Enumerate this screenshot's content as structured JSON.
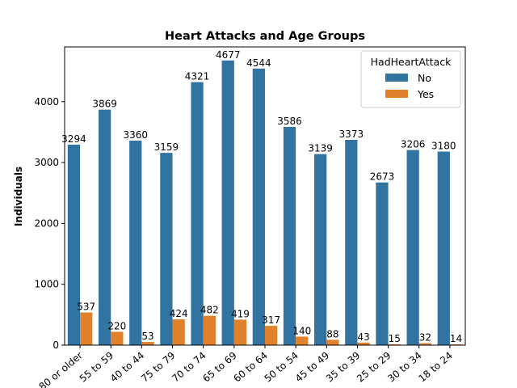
{
  "chart_data": {
    "type": "bar",
    "title": "Heart Attacks and Age Groups",
    "xlabel": "",
    "ylabel": "Individuals",
    "ylim": [
      0,
      4900
    ],
    "yticks": [
      0,
      1000,
      2000,
      3000,
      4000
    ],
    "grid": false,
    "legend": {
      "title": "HadHeartAttack",
      "placement": "top-right"
    },
    "categories": [
      "80 or older",
      "55 to 59",
      "40 to 44",
      "75 to 79",
      "70 to 74",
      "65 to 69",
      "60 to 64",
      "50 to 54",
      "45 to 49",
      "35 to 39",
      "25 to 29",
      "30 to 34",
      "18 to 24"
    ],
    "series": [
      {
        "name": "No",
        "color": "#3274a1",
        "values": [
          3294,
          3869,
          3360,
          3159,
          4321,
          4677,
          4544,
          3586,
          3139,
          3373,
          2673,
          3206,
          3180
        ]
      },
      {
        "name": "Yes",
        "color": "#e1812c",
        "values": [
          537,
          220,
          53,
          424,
          482,
          419,
          317,
          140,
          88,
          43,
          15,
          32,
          14
        ]
      }
    ]
  }
}
